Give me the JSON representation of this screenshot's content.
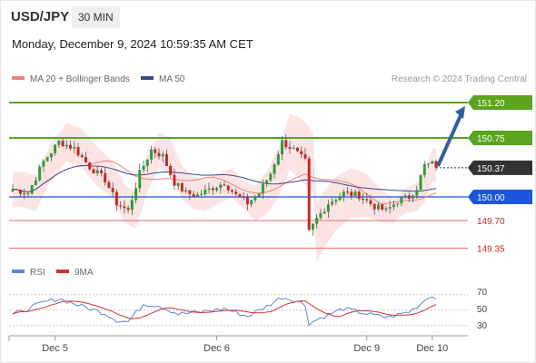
{
  "header": {
    "symbol": "USD/JPY",
    "timeframe": "30 MIN",
    "datetime": "Monday, December 9, 2024 10:59:35 AM CET"
  },
  "colors": {
    "support": "#1a56db",
    "resistance": "#5aa41e",
    "target_line": "#e86a6a",
    "bollinger_fill": "#fde1e1",
    "ma20": "#f08080",
    "ma50": "#3a4a8a",
    "candle_up": "#2e9d3a",
    "candle_down": "#c62828",
    "current": "#333333",
    "rsi": "#5b86d8",
    "rsi_ma": "#d32f2f",
    "arrow": "#2f5fa0"
  },
  "chart_data": [
    {
      "type": "candlestick",
      "legend": [
        {
          "label": "MA 20 + Bollinger Bands",
          "color": "#f08080"
        },
        {
          "label": "MA 50",
          "color": "#3a4a8a"
        }
      ],
      "watermark": "Research © 2024 Trading Central",
      "x_ticks": [
        "Dec 5",
        "Dec 6",
        "Dec 9",
        "Dec 10"
      ],
      "ylim": [
        149.25,
        151.35
      ],
      "levels": [
        {
          "value": 151.2,
          "label": "151.20",
          "kind": "resistance"
        },
        {
          "value": 150.75,
          "label": "150.75",
          "kind": "resistance"
        },
        {
          "value": 150.37,
          "label": "150.37",
          "kind": "current"
        },
        {
          "value": 150.0,
          "label": "150.00",
          "kind": "support"
        },
        {
          "value": 149.7,
          "label": "149.70",
          "kind": "target"
        },
        {
          "value": 149.35,
          "label": "149.35",
          "kind": "target"
        }
      ],
      "arrow": {
        "from_value": 150.37,
        "to_value": 151.2
      },
      "price_anchors": [
        [
          0,
          150.1
        ],
        [
          4,
          150.05
        ],
        [
          8,
          150.45
        ],
        [
          12,
          150.7
        ],
        [
          16,
          150.62
        ],
        [
          20,
          150.38
        ],
        [
          24,
          150.22
        ],
        [
          27,
          149.92
        ],
        [
          30,
          149.82
        ],
        [
          33,
          150.3
        ],
        [
          36,
          150.6
        ],
        [
          39,
          150.52
        ],
        [
          42,
          150.18
        ],
        [
          45,
          150.05
        ],
        [
          48,
          150.02
        ],
        [
          52,
          150.12
        ],
        [
          55,
          150.18
        ],
        [
          58,
          150.02
        ],
        [
          61,
          149.92
        ],
        [
          64,
          150.05
        ],
        [
          67,
          150.3
        ],
        [
          70,
          150.7
        ],
        [
          73,
          150.6
        ],
        [
          76,
          150.45
        ],
        [
          77,
          149.55
        ],
        [
          79,
          149.72
        ],
        [
          82,
          149.92
        ],
        [
          86,
          150.05
        ],
        [
          90,
          150.02
        ],
        [
          94,
          149.88
        ],
        [
          97,
          149.82
        ],
        [
          100,
          149.95
        ],
        [
          103,
          150.0
        ],
        [
          105,
          150.12
        ],
        [
          107,
          150.4
        ],
        [
          109,
          150.42
        ],
        [
          110,
          150.37
        ]
      ],
      "candle_count": 111,
      "bollinger_halfwidth": [
        [
          0,
          0.22
        ],
        [
          20,
          0.25
        ],
        [
          40,
          0.22
        ],
        [
          60,
          0.18
        ],
        [
          75,
          0.4
        ],
        [
          90,
          0.3
        ],
        [
          100,
          0.14
        ],
        [
          110,
          0.22
        ]
      ]
    },
    {
      "type": "line",
      "legend": [
        {
          "label": "RSI",
          "color": "#5b86d8"
        },
        {
          "label": "9MA",
          "color": "#d32f2f"
        }
      ],
      "ylim": [
        25,
        78
      ],
      "y_ticks": [
        "70",
        "50",
        "30"
      ],
      "grid": true,
      "rsi_anchors": [
        [
          0,
          44
        ],
        [
          8,
          60
        ],
        [
          12,
          65
        ],
        [
          18,
          55
        ],
        [
          24,
          46
        ],
        [
          27,
          37
        ],
        [
          30,
          35
        ],
        [
          34,
          58
        ],
        [
          38,
          56
        ],
        [
          43,
          45
        ],
        [
          48,
          47
        ],
        [
          55,
          52
        ],
        [
          61,
          42
        ],
        [
          66,
          55
        ],
        [
          70,
          67
        ],
        [
          74,
          62
        ],
        [
          76,
          56
        ],
        [
          77,
          33
        ],
        [
          80,
          40
        ],
        [
          86,
          52
        ],
        [
          94,
          43
        ],
        [
          98,
          41
        ],
        [
          103,
          48
        ],
        [
          106,
          58
        ],
        [
          108,
          68
        ],
        [
          110,
          66
        ]
      ]
    }
  ]
}
